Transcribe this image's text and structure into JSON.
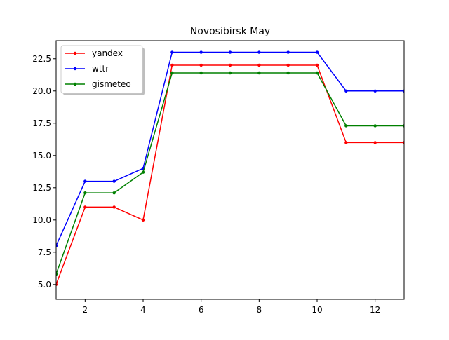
{
  "chart_data": {
    "type": "line",
    "title": "Novosibirsk May",
    "xlabel": "",
    "ylabel": "",
    "x": [
      1,
      2,
      3,
      4,
      5,
      6,
      7,
      8,
      9,
      10,
      11,
      12,
      13
    ],
    "xlim": [
      1,
      13
    ],
    "ylim": [
      3.85,
      23.9
    ],
    "xticks": [
      "2",
      "4",
      "6",
      "8",
      "10",
      "12"
    ],
    "yticks": [
      "5.0",
      "7.5",
      "10.0",
      "12.5",
      "15.0",
      "17.5",
      "20.0",
      "22.5"
    ],
    "grid": false,
    "legend_position": "upper-left",
    "series": [
      {
        "name": "yandex",
        "color": "#ff0000",
        "values": [
          5,
          11,
          11,
          10,
          22,
          22,
          22,
          22,
          22,
          22,
          16,
          16,
          16
        ]
      },
      {
        "name": "wttr",
        "color": "#0000ff",
        "values": [
          8,
          13,
          13,
          14,
          23,
          23,
          23,
          23,
          23,
          23,
          20,
          20,
          20
        ]
      },
      {
        "name": "gismeteo",
        "color": "#008000",
        "values": [
          5.8,
          12.1,
          12.1,
          13.7,
          21.4,
          21.4,
          21.4,
          21.4,
          21.4,
          21.4,
          17.3,
          17.3,
          17.3
        ]
      }
    ]
  }
}
